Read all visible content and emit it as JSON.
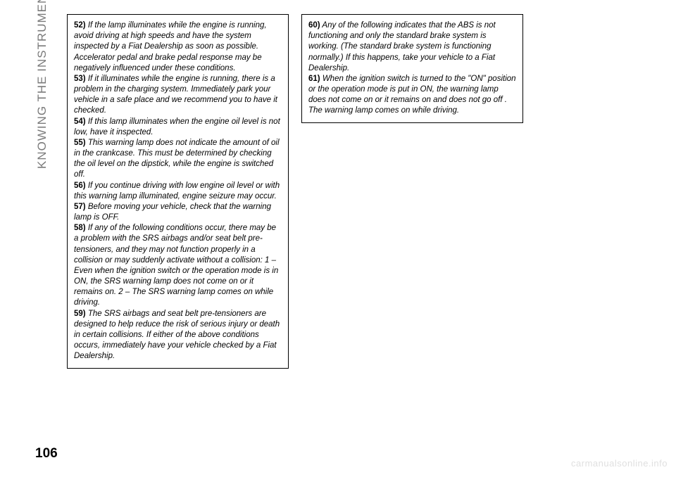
{
  "section_title": "KNOWING THE INSTRUMENT PANEL",
  "page_number": "106",
  "watermark": "carmanualsonline.info",
  "box1": {
    "items": [
      {
        "num": "52)",
        "text": " If the lamp illuminates while the engine is running, avoid driving at high speeds and have the system inspected by a Fiat Dealership as soon as possible. Accelerator pedal and brake pedal response may be negatively influenced under these conditions."
      },
      {
        "num": "53)",
        "text": " If it illuminates while the engine is running, there is a problem in the charging system. Immediately park your vehicle in a safe place and we recommend you to have it checked."
      },
      {
        "num": "54)",
        "text": " If this lamp illuminates when the engine oil level is not low, have it inspected."
      },
      {
        "num": "55)",
        "text": " This warning lamp does not indicate the amount of oil in the crankcase. This must be determined by checking the oil level on the dipstick, while the engine is switched off."
      },
      {
        "num": "56)",
        "text": " If you continue driving with low engine oil level or with this warning lamp illuminated, engine seizure may occur."
      },
      {
        "num": "57)",
        "text": " Before moving your vehicle, check that the warning lamp is OFF."
      },
      {
        "num": "58)",
        "text": " If any of the following conditions occur, there may be a problem with the SRS airbags and/or seat belt pre-tensioners, and they may not function properly in a collision or may suddenly activate without a collision: 1 – Even when the ignition switch or the operation mode is in ON, the SRS warning lamp does not come on or it remains on. 2 – The SRS warning lamp comes on while driving."
      },
      {
        "num": "59)",
        "text": " The SRS airbags and seat belt pre-tensioners are designed to help reduce the risk of serious injury or death in certain collisions. If either of the above conditions occurs, immediately have your vehicle checked by a Fiat Dealership."
      }
    ]
  },
  "box2": {
    "items": [
      {
        "num": "60)",
        "text": " Any of the following indicates that the ABS is not functioning and only the standard brake system is working. (The standard brake system is functioning normally.) If this happens, take your vehicle to a Fiat Dealership."
      },
      {
        "num": "61)",
        "text": " When the ignition switch is turned to the \"ON\" position or the operation mode is put in ON, the warning lamp does not come on or it remains on and does not go off . The warning lamp comes on while driving."
      }
    ]
  }
}
